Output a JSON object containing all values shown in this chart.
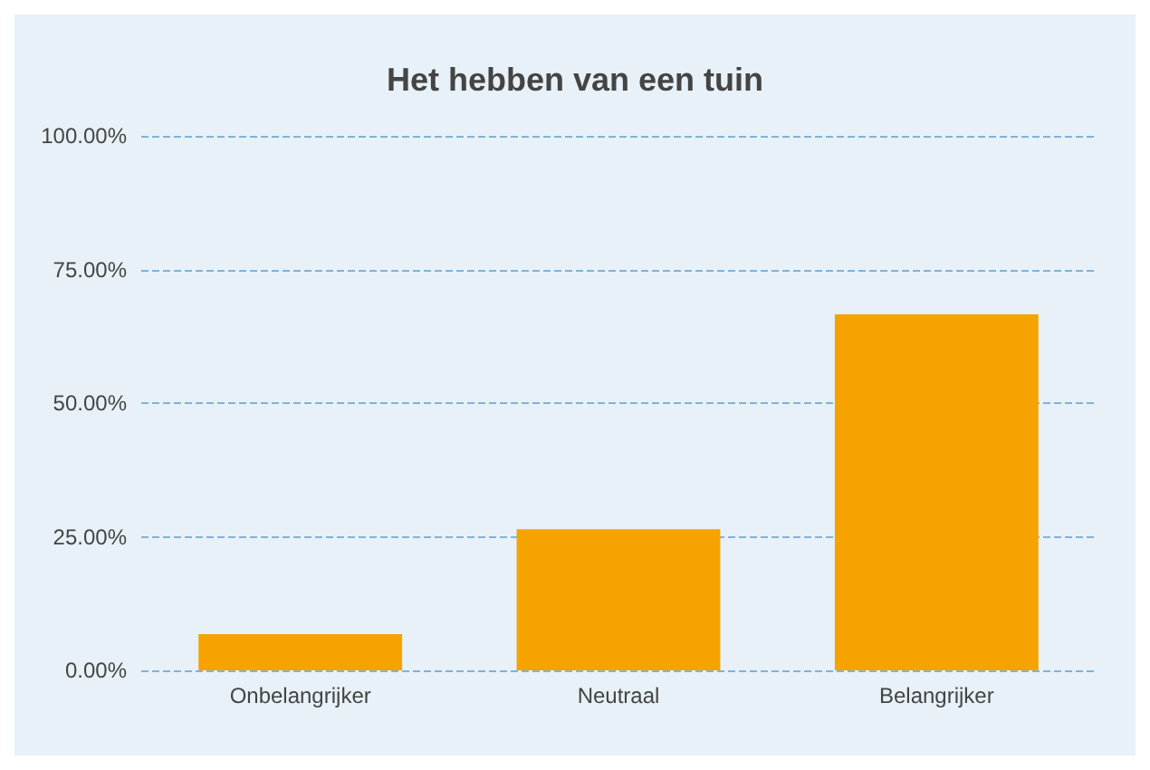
{
  "chart_data": {
    "type": "bar",
    "title": "Het hebben van een tuin",
    "categories": [
      "Onbelangrijker",
      "Neutraal",
      "Belangrijker"
    ],
    "values": [
      6.8,
      26.4,
      66.6
    ],
    "color": "#f6a200",
    "ylim": [
      0,
      100
    ],
    "yticks": [
      {
        "value": 0,
        "label": "0.00%"
      },
      {
        "value": 25,
        "label": "25.00%"
      },
      {
        "value": 50,
        "label": "50.00%"
      },
      {
        "value": 75,
        "label": "75.00%"
      },
      {
        "value": 100,
        "label": "100.00%"
      }
    ],
    "grid": "y"
  }
}
